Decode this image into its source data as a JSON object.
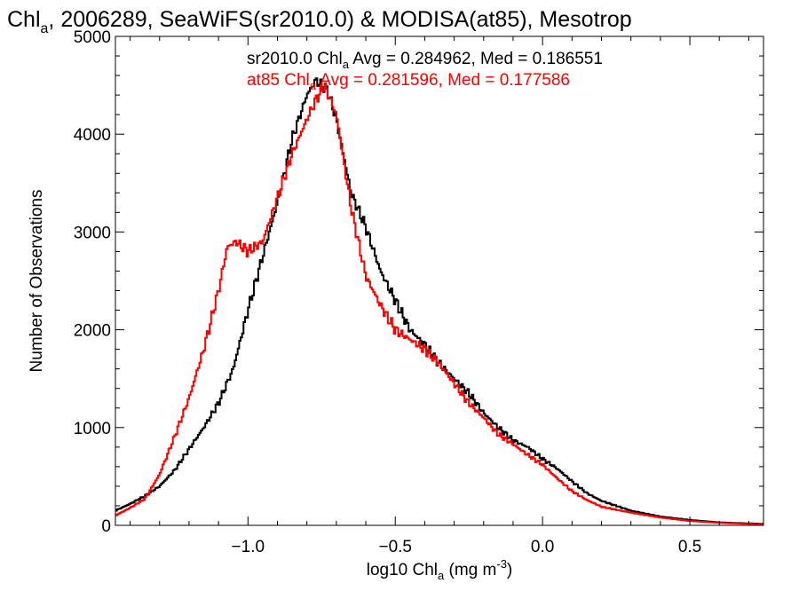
{
  "chart_data": {
    "type": "line",
    "title": {
      "prefix": "Chl",
      "sub": "a",
      "rest": ", 2006289, SeaWiFS(sr2010.0) & MODISA(at85), Mesotrop"
    },
    "xlabel": {
      "prefix": "log10 Chl",
      "sub": "a",
      "mid": " (mg m",
      "sup": "-3",
      "suffix": ")"
    },
    "ylabel": "Number of Observations",
    "xlim": [
      -1.45,
      0.75
    ],
    "ylim": [
      0,
      5000
    ],
    "x_ticks": [
      {
        "value": -1.0,
        "label": "−1.0"
      },
      {
        "value": -0.5,
        "label": "−0.5"
      },
      {
        "value": 0.0,
        "label": "0.0"
      },
      {
        "value": 0.5,
        "label": "0.5"
      }
    ],
    "y_ticks": [
      {
        "value": 0,
        "label": "0"
      },
      {
        "value": 1000,
        "label": "1000"
      },
      {
        "value": 2000,
        "label": "2000"
      },
      {
        "value": 3000,
        "label": "3000"
      },
      {
        "value": 4000,
        "label": "4000"
      },
      {
        "value": 5000,
        "label": "5000"
      }
    ],
    "grid": false,
    "annotations": [
      {
        "prefix": "sr2010.0 Chl",
        "sub": "a",
        "rest": " Avg = 0.284962, Med = 0.186551",
        "color": "#000000"
      },
      {
        "prefix": "at85 Chl",
        "sub": "a",
        "rest": " Avg = 0.281596, Med = 0.177586",
        "color": "#ff0000"
      }
    ],
    "series": [
      {
        "color": "#000000",
        "x": [
          -1.45,
          -1.4,
          -1.35,
          -1.3,
          -1.25,
          -1.2,
          -1.15,
          -1.1,
          -1.05,
          -1.0,
          -0.95,
          -0.9,
          -0.85,
          -0.8,
          -0.77,
          -0.73,
          -0.7,
          -0.65,
          -0.6,
          -0.55,
          -0.5,
          -0.45,
          -0.4,
          -0.35,
          -0.3,
          -0.25,
          -0.2,
          -0.15,
          -0.1,
          -0.05,
          0.0,
          0.05,
          0.1,
          0.15,
          0.2,
          0.3,
          0.4,
          0.5,
          0.6,
          0.75
        ],
        "y": [
          150,
          220,
          300,
          400,
          560,
          780,
          1000,
          1250,
          1600,
          2200,
          2750,
          3300,
          3950,
          4400,
          4550,
          4450,
          4150,
          3400,
          3050,
          2600,
          2300,
          2000,
          1850,
          1650,
          1500,
          1350,
          1150,
          1000,
          870,
          800,
          680,
          580,
          450,
          330,
          250,
          150,
          90,
          55,
          30,
          15
        ]
      },
      {
        "color": "#ff0000",
        "x": [
          -1.45,
          -1.4,
          -1.35,
          -1.3,
          -1.25,
          -1.2,
          -1.15,
          -1.1,
          -1.07,
          -1.04,
          -1.0,
          -0.95,
          -0.9,
          -0.85,
          -0.8,
          -0.77,
          -0.74,
          -0.7,
          -0.65,
          -0.6,
          -0.55,
          -0.5,
          -0.45,
          -0.4,
          -0.35,
          -0.3,
          -0.25,
          -0.2,
          -0.15,
          -0.1,
          -0.05,
          0.0,
          0.05,
          0.1,
          0.15,
          0.2,
          0.3,
          0.4,
          0.5,
          0.6,
          0.75
        ],
        "y": [
          100,
          180,
          270,
          520,
          900,
          1300,
          1800,
          2400,
          2850,
          2900,
          2800,
          2900,
          3350,
          3800,
          4150,
          4350,
          4500,
          4200,
          3250,
          2550,
          2250,
          2000,
          1900,
          1800,
          1650,
          1450,
          1250,
          1100,
          930,
          830,
          720,
          620,
          480,
          350,
          260,
          190,
          130,
          80,
          45,
          25,
          10
        ]
      }
    ]
  }
}
